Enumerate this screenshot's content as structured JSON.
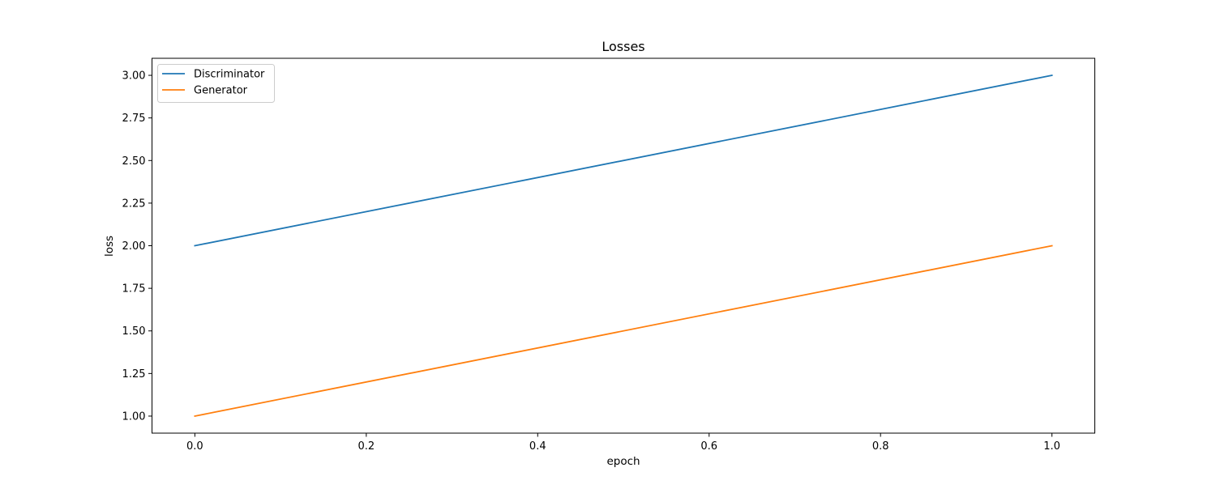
{
  "chart_data": {
    "type": "line",
    "title": "Losses",
    "xlabel": "epoch",
    "ylabel": "loss",
    "x": [
      0.0,
      1.0
    ],
    "xlim": [
      -0.05,
      1.05
    ],
    "ylim": [
      0.9,
      3.1
    ],
    "xticks": [
      0.0,
      0.2,
      0.4,
      0.6,
      0.8,
      1.0
    ],
    "xtick_labels": [
      "0.0",
      "0.2",
      "0.4",
      "0.6",
      "0.8",
      "1.0"
    ],
    "yticks": [
      1.0,
      1.25,
      1.5,
      1.75,
      2.0,
      2.25,
      2.5,
      2.75,
      3.0
    ],
    "ytick_labels": [
      "1.00",
      "1.25",
      "1.50",
      "1.75",
      "2.00",
      "2.25",
      "2.50",
      "2.75",
      "3.00"
    ],
    "series": [
      {
        "name": "Discriminator",
        "values": [
          2.0,
          3.0
        ],
        "color": "#1f77b4"
      },
      {
        "name": "Generator",
        "values": [
          1.0,
          2.0
        ],
        "color": "#ff7f0e"
      }
    ],
    "grid": false,
    "legend_position": "upper-left"
  }
}
